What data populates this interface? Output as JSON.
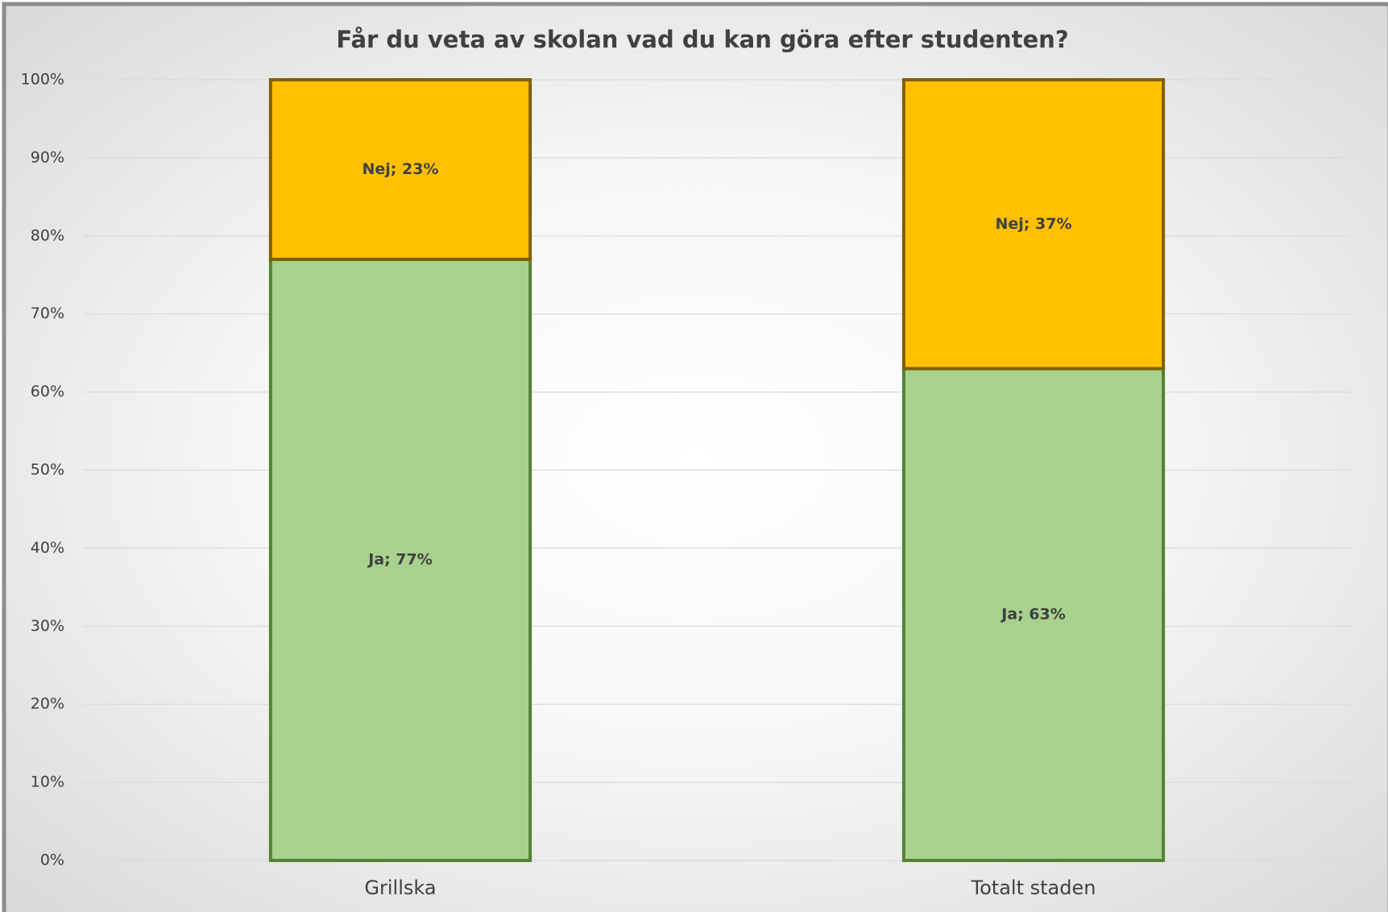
{
  "chart_data": {
    "type": "stacked_bar",
    "title": "Får du veta av skolan vad du kan göra efter studenten?",
    "categories": [
      "Grillska",
      "Totalt staden"
    ],
    "series": [
      {
        "name": "Ja",
        "color": "#a9d18e",
        "values": [
          77,
          63
        ],
        "value_labels": [
          "Ja; 77%",
          "Ja; 63%"
        ]
      },
      {
        "name": "Nej",
        "color": "#ffc000",
        "values": [
          23,
          37
        ],
        "value_labels": [
          "Nej; 23%",
          "Nej; 37%"
        ]
      }
    ],
    "ylim": [
      0,
      100
    ],
    "yticks": [
      {
        "value": 0,
        "label": "0%"
      },
      {
        "value": 10,
        "label": "10%"
      },
      {
        "value": 20,
        "label": "20%"
      },
      {
        "value": 30,
        "label": "30%"
      },
      {
        "value": 40,
        "label": "40%"
      },
      {
        "value": 50,
        "label": "50%"
      },
      {
        "value": 60,
        "label": "60%"
      },
      {
        "value": 70,
        "label": "70%"
      },
      {
        "value": 80,
        "label": "80%"
      },
      {
        "value": 90,
        "label": "90%"
      },
      {
        "value": 100,
        "label": "100%"
      }
    ],
    "grid": true
  }
}
